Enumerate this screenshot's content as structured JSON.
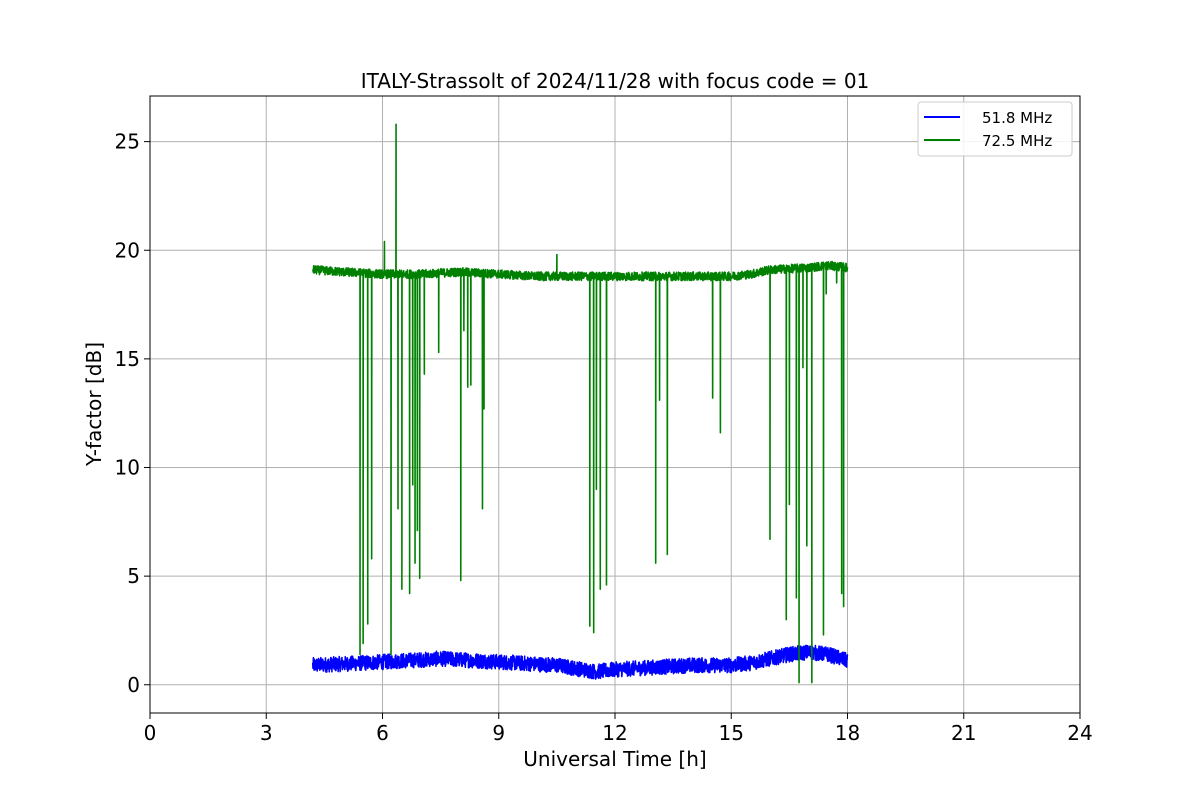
{
  "chart_data": {
    "type": "line",
    "title": "ITALY-Strassolt of 2024/11/28 with focus code = 01",
    "xlabel": "Universal Time [h]",
    "ylabel": "Y-factor [dB]",
    "xlim": [
      0,
      24
    ],
    "ylim": [
      -1.3,
      27.1
    ],
    "xticks": [
      0,
      3,
      6,
      9,
      12,
      15,
      18,
      21,
      24
    ],
    "yticks": [
      0,
      5,
      10,
      15,
      20,
      25
    ],
    "grid": true,
    "legend_position": "top-right",
    "series": [
      {
        "name": "51.8 MHz",
        "color": "#0000ff",
        "baseline": [
          [
            4.2,
            0.9
          ],
          [
            5.5,
            1.0
          ],
          [
            6.5,
            1.1
          ],
          [
            7.5,
            1.2
          ],
          [
            8.5,
            1.1
          ],
          [
            9.5,
            1.0
          ],
          [
            10.5,
            0.9
          ],
          [
            11.5,
            0.6
          ],
          [
            12.0,
            0.7
          ],
          [
            13.0,
            0.8
          ],
          [
            14.0,
            0.9
          ],
          [
            15.0,
            0.9
          ],
          [
            15.5,
            1.0
          ],
          [
            16.0,
            1.2
          ],
          [
            16.5,
            1.4
          ],
          [
            17.0,
            1.5
          ],
          [
            17.5,
            1.4
          ],
          [
            18.0,
            1.1
          ]
        ],
        "noise_amplitude": 0.35,
        "dips": []
      },
      {
        "name": "72.5 MHz",
        "color": "#008000",
        "baseline": [
          [
            4.2,
            19.1
          ],
          [
            5.0,
            19.0
          ],
          [
            6.0,
            18.9
          ],
          [
            7.0,
            18.9
          ],
          [
            8.0,
            19.0
          ],
          [
            9.0,
            18.9
          ],
          [
            10.0,
            18.8
          ],
          [
            11.0,
            18.8
          ],
          [
            12.0,
            18.8
          ],
          [
            13.0,
            18.8
          ],
          [
            14.0,
            18.8
          ],
          [
            15.0,
            18.8
          ],
          [
            15.5,
            18.9
          ],
          [
            16.0,
            19.1
          ],
          [
            17.0,
            19.2
          ],
          [
            17.5,
            19.3
          ],
          [
            18.0,
            19.2
          ]
        ],
        "noise_amplitude": 0.2,
        "dips": [
          [
            5.42,
            1.4
          ],
          [
            5.5,
            1.9
          ],
          [
            5.62,
            2.8
          ],
          [
            5.72,
            5.8
          ],
          [
            6.05,
            20.4
          ],
          [
            6.22,
            1.4
          ],
          [
            6.35,
            25.8
          ],
          [
            6.4,
            8.1
          ],
          [
            6.5,
            4.4
          ],
          [
            6.7,
            4.2
          ],
          [
            6.78,
            9.2
          ],
          [
            6.84,
            5.6
          ],
          [
            6.9,
            7.1
          ],
          [
            6.96,
            4.9
          ],
          [
            7.08,
            14.3
          ],
          [
            7.45,
            15.3
          ],
          [
            8.02,
            4.8
          ],
          [
            8.1,
            16.3
          ],
          [
            8.2,
            13.7
          ],
          [
            8.28,
            13.8
          ],
          [
            8.58,
            8.1
          ],
          [
            8.62,
            12.7
          ],
          [
            10.5,
            19.8
          ],
          [
            11.35,
            2.7
          ],
          [
            11.45,
            2.4
          ],
          [
            11.52,
            9.0
          ],
          [
            11.62,
            4.4
          ],
          [
            11.78,
            4.6
          ],
          [
            13.05,
            5.6
          ],
          [
            13.15,
            13.1
          ],
          [
            13.35,
            6.0
          ],
          [
            14.52,
            13.2
          ],
          [
            14.72,
            11.6
          ],
          [
            16.0,
            6.7
          ],
          [
            16.42,
            3.0
          ],
          [
            16.5,
            8.3
          ],
          [
            16.68,
            4.0
          ],
          [
            16.75,
            0.1
          ],
          [
            16.85,
            14.6
          ],
          [
            16.95,
            6.4
          ],
          [
            17.08,
            0.1
          ],
          [
            17.38,
            2.3
          ],
          [
            17.45,
            18.0
          ],
          [
            17.72,
            18.5
          ],
          [
            17.85,
            4.2
          ],
          [
            17.9,
            3.6
          ]
        ]
      }
    ]
  }
}
